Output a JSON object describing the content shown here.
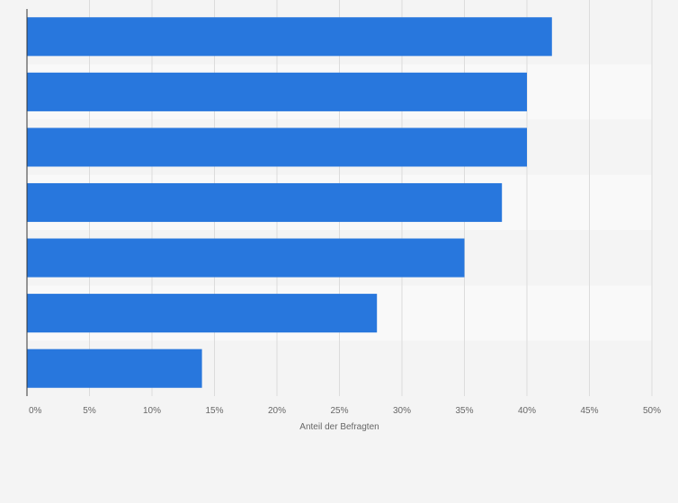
{
  "chart_data": {
    "type": "bar",
    "orientation": "horizontal",
    "categories": [
      "",
      "",
      "",
      "",
      "",
      "",
      ""
    ],
    "values": [
      42,
      40,
      40,
      38,
      35,
      28,
      14
    ],
    "xlabel": "Anteil der Befragten",
    "ylabel": "",
    "xlim": [
      0,
      50
    ],
    "x_ticks": [
      0,
      5,
      10,
      15,
      20,
      25,
      30,
      35,
      40,
      45,
      50
    ],
    "x_tick_labels": [
      "0%",
      "5%",
      "10%",
      "15%",
      "20%",
      "25%",
      "30%",
      "35%",
      "40%",
      "45%",
      "50%"
    ],
    "grid": true,
    "colors": {
      "bar": "#2877dd",
      "band_light": "#f9f9f9",
      "band_dark": "#f4f4f4",
      "grid": "#dcdcdc",
      "axis": "#333333",
      "text": "#666666"
    }
  }
}
